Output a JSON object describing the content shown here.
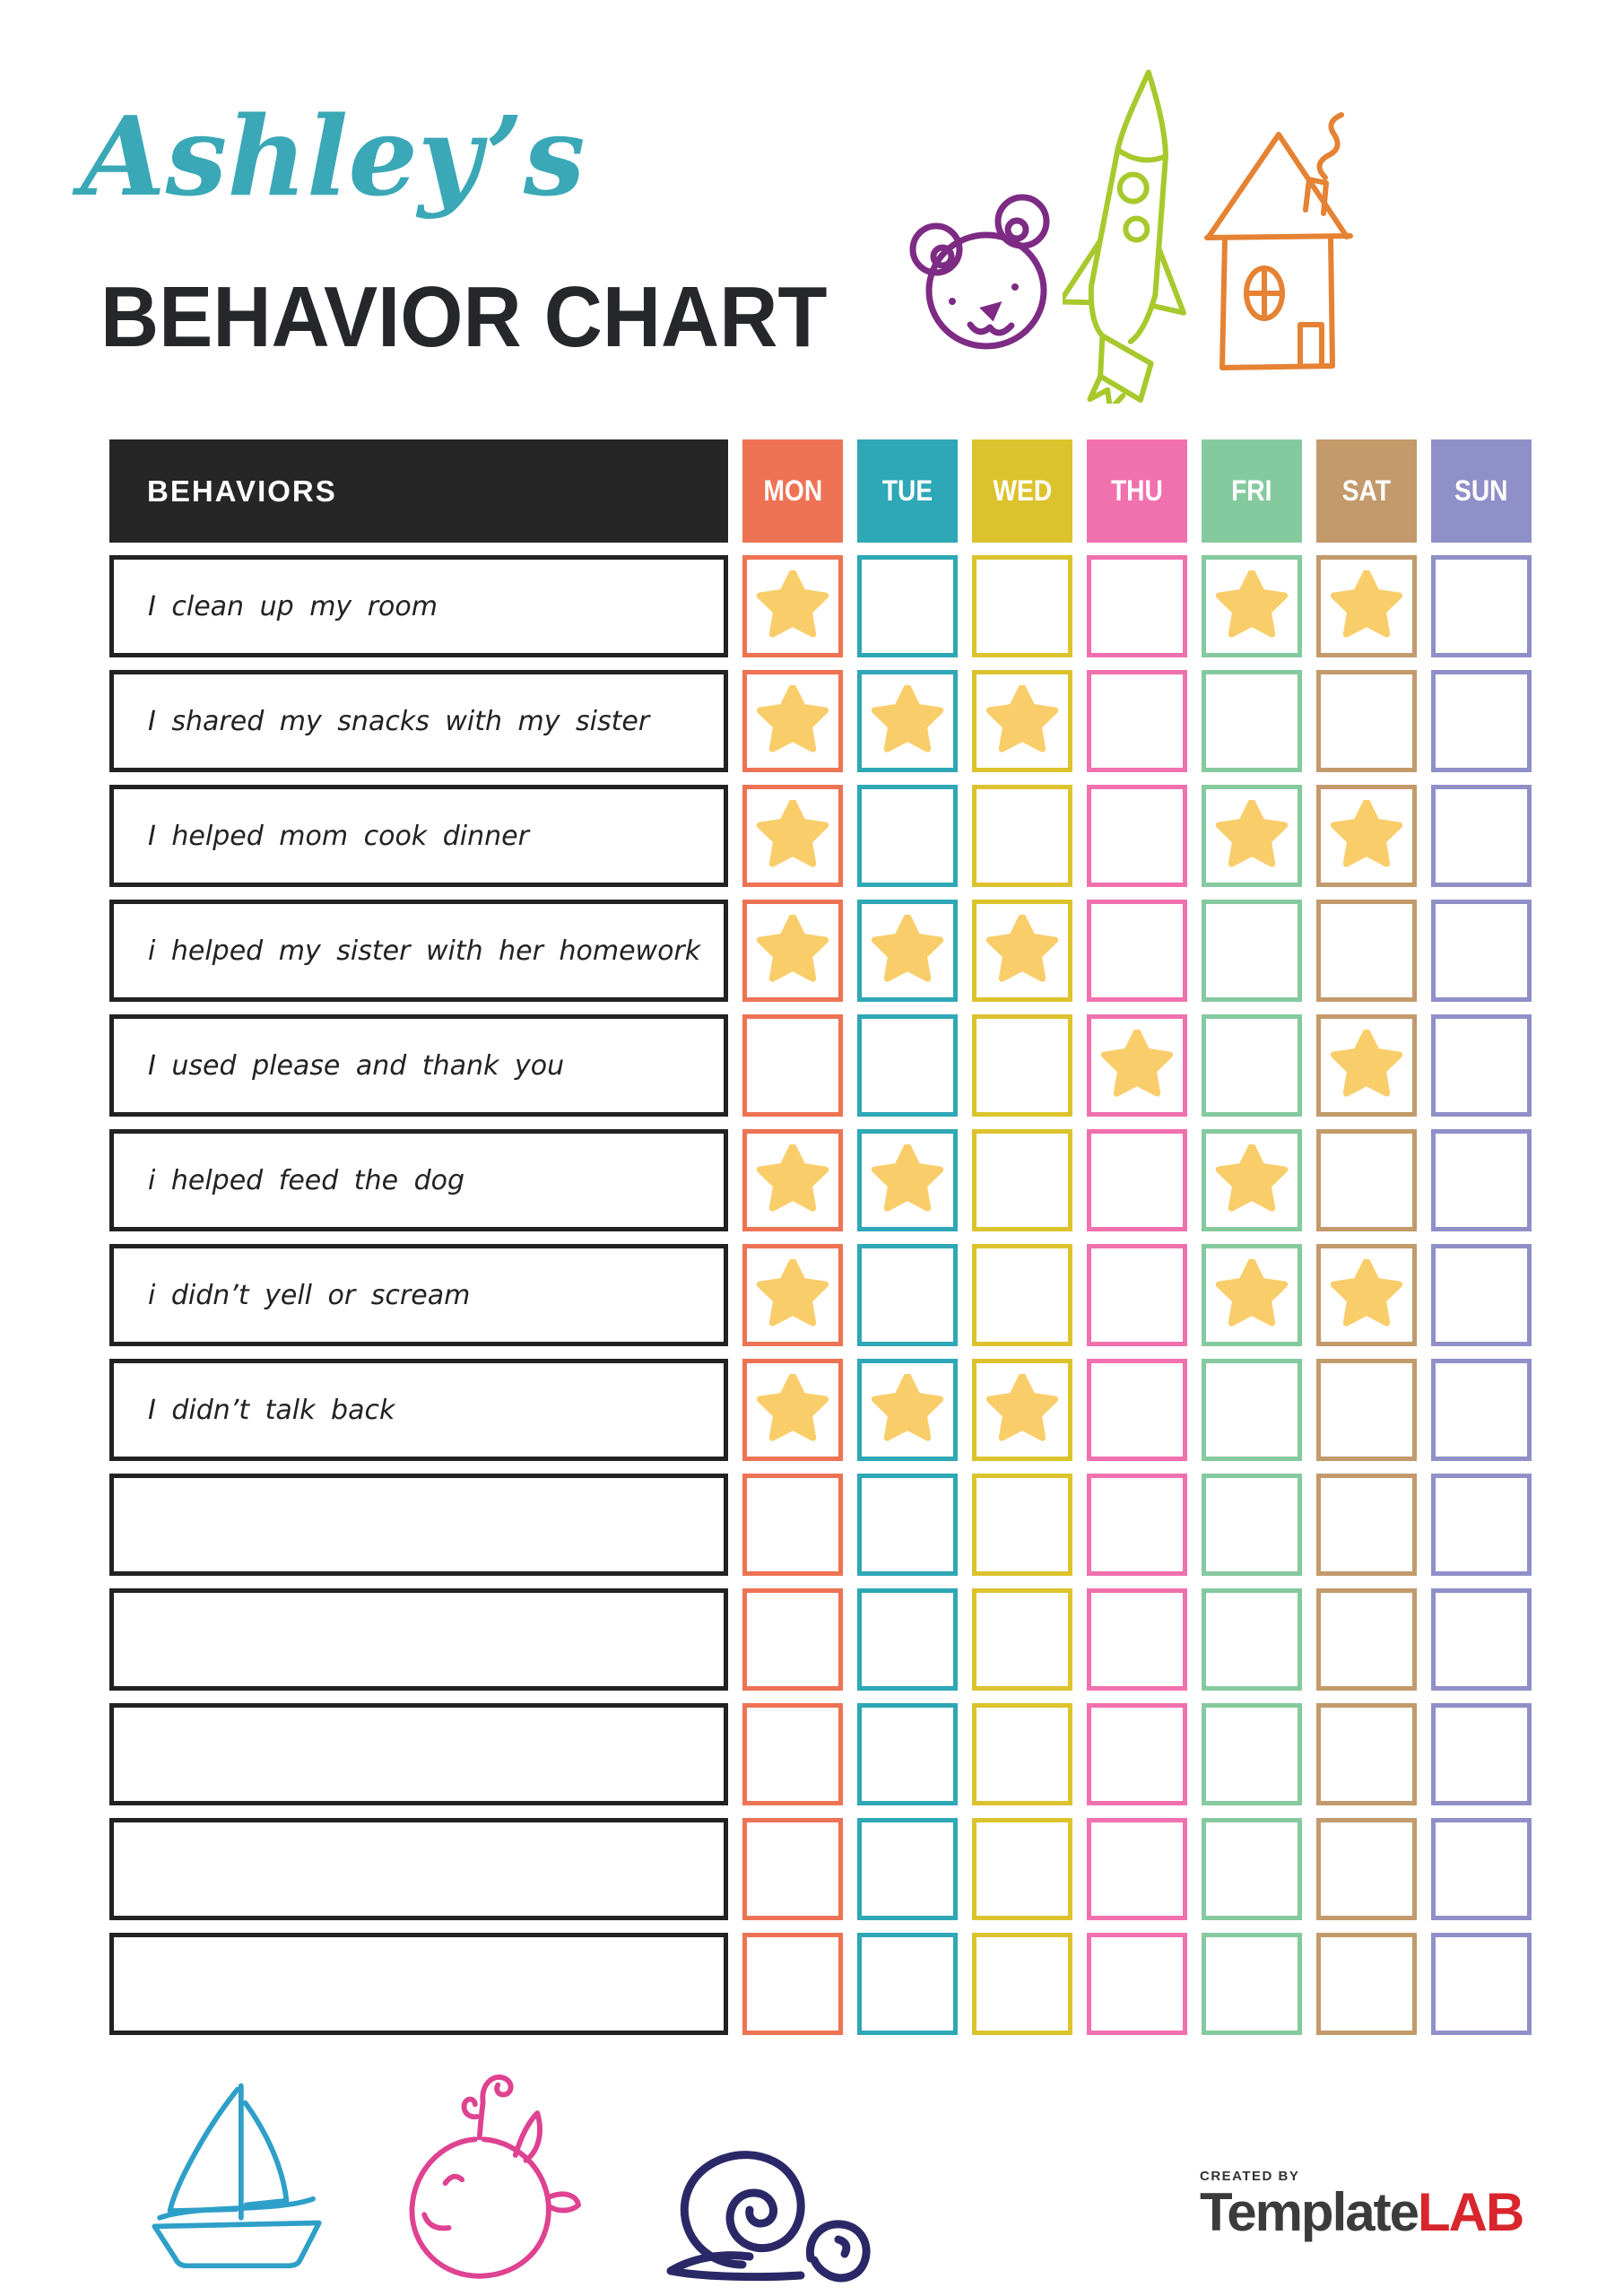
{
  "header": {
    "name": "Ashley’s",
    "title": "BEHAVIOR CHART",
    "name_color": "#3AA8B6"
  },
  "table": {
    "behaviors_header": "BEHAVIORS",
    "days": [
      {
        "label": "MON",
        "color": "#ED7354"
      },
      {
        "label": "TUE",
        "color": "#2EA7B6"
      },
      {
        "label": "WED",
        "color": "#DCC32E"
      },
      {
        "label": "THU",
        "color": "#F170AE"
      },
      {
        "label": "FRI",
        "color": "#85CA9E"
      },
      {
        "label": "SAT",
        "color": "#C39A6B"
      },
      {
        "label": "SUN",
        "color": "#8F90C8"
      }
    ],
    "rows": [
      {
        "behavior": "I clean up my room",
        "stars": [
          "MON",
          "FRI",
          "SAT"
        ]
      },
      {
        "behavior": "I shared my snacks with my sister",
        "stars": [
          "MON",
          "TUE",
          "WED"
        ]
      },
      {
        "behavior": "I helped mom cook dinner",
        "stars": [
          "MON",
          "FRI",
          "SAT"
        ]
      },
      {
        "behavior": "i helped my sister with her homework",
        "stars": [
          "MON",
          "TUE",
          "WED"
        ]
      },
      {
        "behavior": "I used please and thank you",
        "stars": [
          "THU",
          "SAT"
        ]
      },
      {
        "behavior": "i helped feed the dog",
        "stars": [
          "MON",
          "TUE",
          "FRI"
        ]
      },
      {
        "behavior": "i didn’t yell or scream",
        "stars": [
          "MON",
          "FRI",
          "SAT"
        ]
      },
      {
        "behavior": "I didn’t talk back",
        "stars": [
          "MON",
          "TUE",
          "WED"
        ]
      },
      {
        "behavior": "",
        "stars": []
      },
      {
        "behavior": "",
        "stars": []
      },
      {
        "behavior": "",
        "stars": []
      },
      {
        "behavior": "",
        "stars": []
      },
      {
        "behavior": "",
        "stars": []
      }
    ],
    "star_color": "#F9CD69",
    "star_symbol": "★"
  },
  "doodles": {
    "top": [
      "bear",
      "rocket",
      "house"
    ],
    "bottom": [
      "sailboat",
      "whale",
      "snail"
    ],
    "bear_color": "#7D2B84",
    "rocket_color": "#A8C92D",
    "house_color": "#E58233",
    "sailboat_color": "#2E9FC8",
    "whale_color": "#DE4291",
    "snail_color": "#2A2867"
  },
  "footer": {
    "credit_small": "CREATED BY",
    "brand_primary": "Template",
    "brand_accent": "LAB",
    "brand_accent_color": "#D8262C"
  }
}
